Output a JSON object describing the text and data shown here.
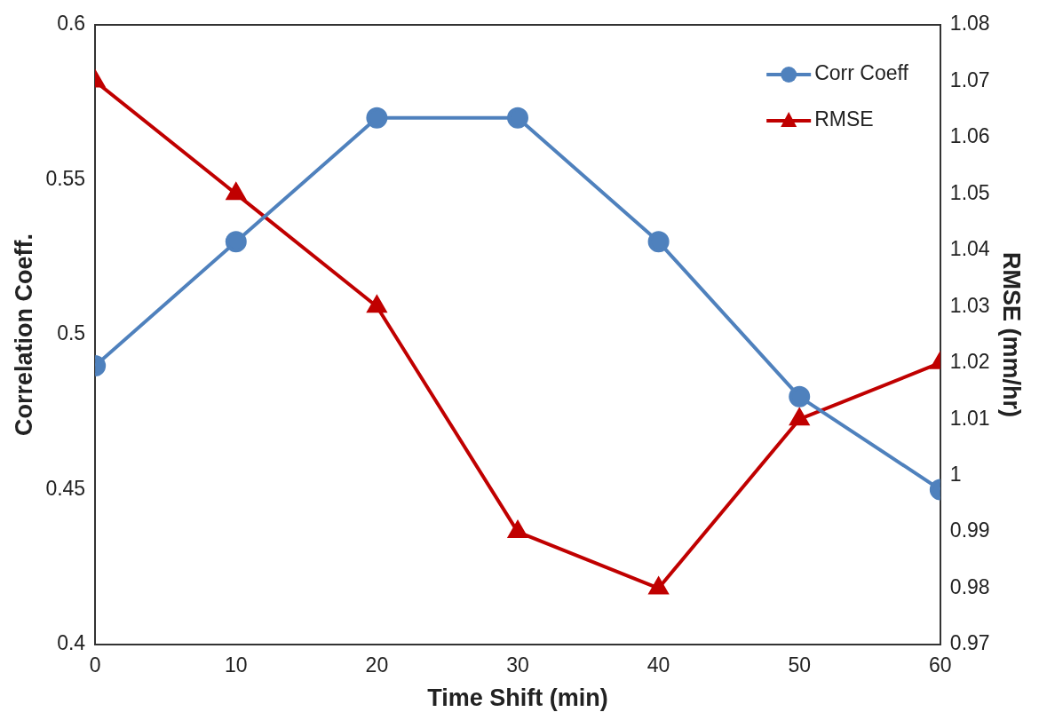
{
  "chart_data": {
    "type": "line",
    "xlabel": "Time Shift (min)",
    "ylabel": "Correlation Coeff.",
    "y2label": "RMSE (mm/hr)",
    "x": [
      0,
      10,
      20,
      30,
      40,
      50,
      60
    ],
    "xlim": [
      0,
      60
    ],
    "xticks": [
      0,
      10,
      20,
      30,
      40,
      50,
      60
    ],
    "ylim": [
      0.4,
      0.6
    ],
    "yticks": [
      0.4,
      0.45,
      0.5,
      0.55,
      0.6
    ],
    "y2lim": [
      0.97,
      1.08
    ],
    "y2ticks": [
      0.97,
      0.98,
      0.99,
      1,
      1.01,
      1.02,
      1.03,
      1.04,
      1.05,
      1.06,
      1.07,
      1.08
    ],
    "series": [
      {
        "name": "Corr Coeff",
        "color": "#4f81bd",
        "marker": "circle",
        "values": [
          0.49,
          0.53,
          0.57,
          0.57,
          0.53,
          0.48,
          0.45
        ]
      },
      {
        "name": "RMSE",
        "color": "#c00000",
        "marker": "triangle",
        "axis": "y2",
        "values": [
          1.07,
          1.05,
          1.03,
          0.99,
          0.98,
          1.01,
          1.02
        ]
      }
    ],
    "grid": false,
    "legend": "top right",
    "line_style": "solid"
  }
}
